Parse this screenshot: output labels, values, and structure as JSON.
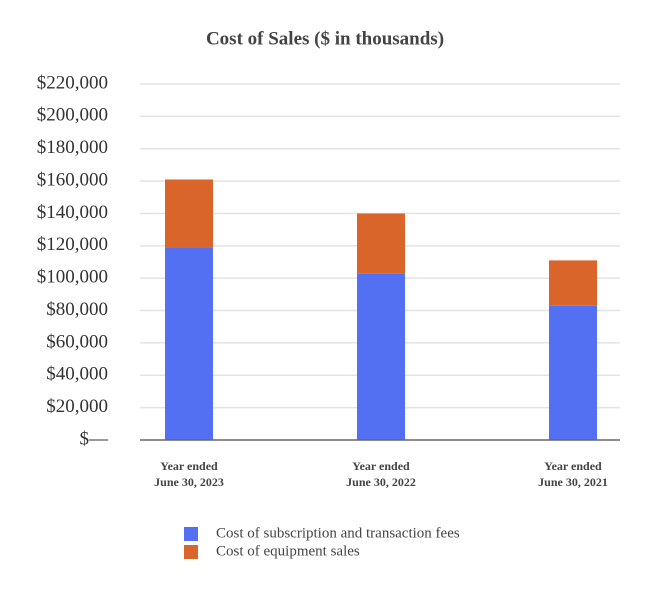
{
  "chart_data": {
    "type": "stacked_bar",
    "title": "Cost of Sales ($ in thousands)",
    "categories": [
      [
        "Year ended",
        "June 30, 2023"
      ],
      [
        "Year ended",
        "June 30, 2022"
      ],
      [
        "Year ended",
        "June 30, 2021"
      ]
    ],
    "series": [
      {
        "name": "Cost of subscription and transaction fees",
        "color": "#5470f2",
        "values": [
          119000,
          103000,
          83000
        ]
      },
      {
        "name": "Cost of equipment sales",
        "color": "#d9652b",
        "values": [
          42000,
          37000,
          28000
        ]
      }
    ],
    "ylim": [
      0,
      220000
    ],
    "yticks": [
      {
        "value": 0,
        "label": "$—"
      },
      {
        "value": 20000,
        "label": "$20,000"
      },
      {
        "value": 40000,
        "label": "$40,000"
      },
      {
        "value": 60000,
        "label": "$60,000"
      },
      {
        "value": 80000,
        "label": "$80,000"
      },
      {
        "value": 100000,
        "label": "$100,000"
      },
      {
        "value": 120000,
        "label": "$120,000"
      },
      {
        "value": 140000,
        "label": "$140,000"
      },
      {
        "value": 160000,
        "label": "$160,000"
      },
      {
        "value": 180000,
        "label": "$180,000"
      },
      {
        "value": 200000,
        "label": "$200,000"
      },
      {
        "value": 220000,
        "label": "$220,000"
      }
    ],
    "grid": true
  }
}
